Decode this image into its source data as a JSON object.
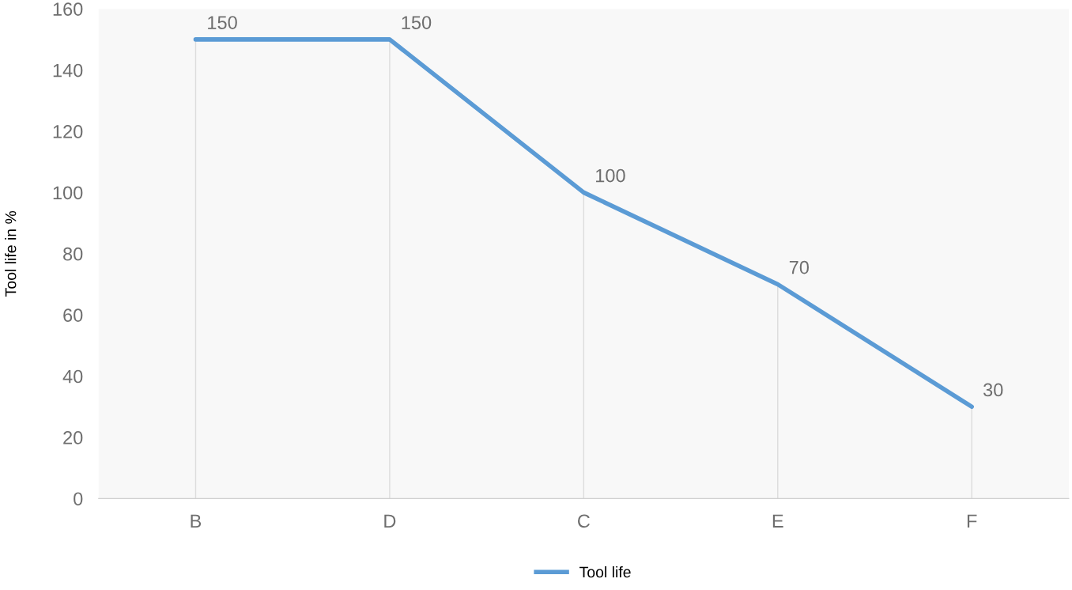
{
  "chart_data": {
    "type": "line",
    "ylabel": "Tool life in %",
    "categories": [
      "B",
      "D",
      "C",
      "E",
      "F"
    ],
    "series": [
      {
        "name": "Tool life",
        "color": "#5b9bd5",
        "values": [
          150,
          150,
          100,
          70,
          30
        ]
      }
    ],
    "ylim": [
      0,
      160
    ],
    "yticks": [
      0,
      20,
      40,
      60,
      80,
      100,
      120,
      140,
      160
    ],
    "data_labels": true,
    "grid": "x",
    "legend": "bottom",
    "marker": "none",
    "line_style": "solid"
  }
}
